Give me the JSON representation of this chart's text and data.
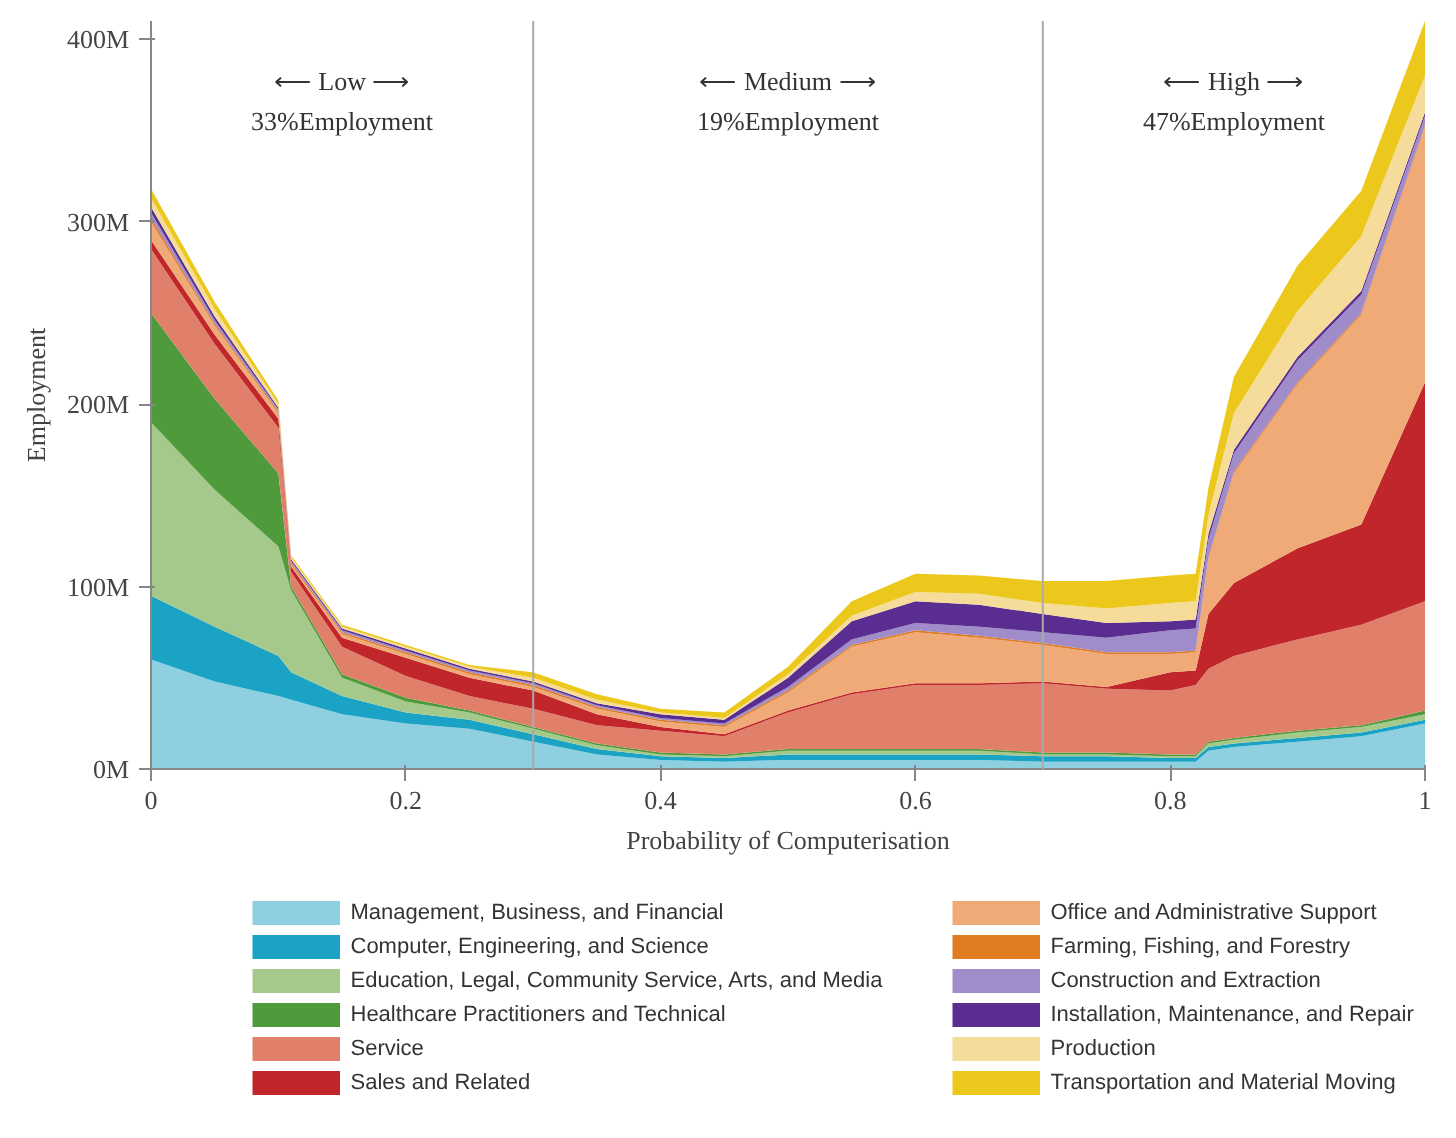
{
  "chart_data": {
    "type": "area",
    "stacked": true,
    "xlabel": "Probability of Computerisation",
    "ylabel": "Employment",
    "x": [
      0,
      0.05,
      0.1,
      0.11,
      0.15,
      0.2,
      0.25,
      0.3,
      0.35,
      0.4,
      0.45,
      0.5,
      0.55,
      0.6,
      0.65,
      0.7,
      0.75,
      0.8,
      0.82,
      0.83,
      0.85,
      0.9,
      0.95,
      1
    ],
    "xlim": [
      0,
      1
    ],
    "ylim": [
      0,
      410
    ],
    "xticks": [
      0,
      0.2,
      0.4,
      0.6,
      0.8,
      1
    ],
    "yticks": [
      {
        "value": 0,
        "label": "0M"
      },
      {
        "value": 100,
        "label": "100M"
      },
      {
        "value": 200,
        "label": "200M"
      },
      {
        "value": 300,
        "label": "300M"
      },
      {
        "value": 400,
        "label": "400M"
      }
    ],
    "grid": false,
    "legend": "bottom",
    "ref_lines": [
      {
        "axis": "x",
        "value": 0.3,
        "color": "#aaaaaa"
      },
      {
        "axis": "x",
        "value": 0.7,
        "color": "#aaaaaa"
      }
    ],
    "annotations": [
      "⟵ Low ⟶",
      "33%Employment",
      "⟵ Medium ⟶",
      "19%Employment",
      "⟵ High ⟶",
      "47%Employment"
    ],
    "series": [
      {
        "name": "Management, Business, and Financial",
        "color": "#8ecfe0",
        "values": [
          60,
          48,
          40,
          38,
          30,
          25,
          22,
          15,
          8,
          5,
          4,
          5,
          5,
          5,
          5,
          4,
          4,
          4,
          4,
          10,
          12,
          15,
          18,
          25
        ]
      },
      {
        "name": "Computer, Engineering, and Science",
        "color": "#1aa3c4",
        "values": [
          35,
          30,
          22,
          15,
          10,
          6,
          5,
          4,
          3,
          2,
          2,
          3,
          3,
          3,
          3,
          3,
          3,
          2,
          2,
          2,
          2,
          2,
          2,
          2
        ]
      },
      {
        "name": "Education, Legal, Community Service, Arts, and Media",
        "color": "#a5c98a",
        "values": [
          95,
          75,
          60,
          45,
          10,
          6,
          4,
          3,
          2,
          1,
          1,
          2,
          2,
          2,
          2,
          1,
          1,
          1,
          1,
          2,
          2,
          3,
          3,
          3
        ]
      },
      {
        "name": "Healthcare Practitioners and Technical",
        "color": "#4f9a3a",
        "values": [
          60,
          50,
          40,
          2,
          2,
          2,
          1,
          1,
          1,
          1,
          1,
          1,
          1,
          1,
          1,
          1,
          1,
          1,
          1,
          1,
          1,
          1,
          1,
          2
        ]
      },
      {
        "name": "Service",
        "color": "#e0806a",
        "values": [
          35,
          30,
          25,
          8,
          15,
          12,
          8,
          10,
          10,
          12,
          10,
          20,
          30,
          35,
          35,
          38,
          35,
          35,
          38,
          40,
          45,
          50,
          55,
          60
        ]
      },
      {
        "name": "Sales and Related",
        "color": "#c0262a",
        "values": [
          5,
          5,
          5,
          3,
          5,
          10,
          10,
          10,
          6,
          2,
          1,
          1,
          1,
          1,
          1,
          1,
          1,
          10,
          8,
          30,
          40,
          50,
          55,
          120
        ]
      },
      {
        "name": "Office and Administrative Support",
        "color": "#f0aa78",
        "values": [
          10,
          5,
          3,
          1,
          2,
          2,
          2,
          2,
          3,
          3,
          4,
          10,
          25,
          28,
          25,
          20,
          18,
          10,
          10,
          30,
          60,
          90,
          115,
          140
        ]
      },
      {
        "name": "Farming, Fishing, and Forestry",
        "color": "#e07b22",
        "values": [
          2,
          1,
          1,
          1,
          1,
          1,
          1,
          1,
          1,
          1,
          1,
          1,
          1,
          1,
          1,
          1,
          1,
          1,
          1,
          1,
          1,
          1,
          1,
          1
        ]
      },
      {
        "name": "Construction and Extraction",
        "color": "#a08cc8",
        "values": [
          3,
          2,
          1,
          1,
          1,
          1,
          1,
          1,
          1,
          1,
          1,
          2,
          3,
          4,
          5,
          6,
          8,
          12,
          12,
          10,
          10,
          12,
          10,
          5
        ]
      },
      {
        "name": "Installation, Maintenance, and Repair",
        "color": "#5a2d91",
        "values": [
          3,
          2,
          1,
          1,
          1,
          1,
          1,
          1,
          1,
          2,
          2,
          5,
          10,
          12,
          12,
          10,
          8,
          5,
          5,
          3,
          2,
          2,
          2,
          2
        ]
      },
      {
        "name": "Production",
        "color": "#f5dc9a",
        "values": [
          5,
          4,
          2,
          1,
          1,
          1,
          1,
          2,
          2,
          1,
          1,
          2,
          3,
          5,
          6,
          6,
          8,
          10,
          10,
          10,
          20,
          25,
          30,
          20
        ]
      },
      {
        "name": "Transportation and Material Moving",
        "color": "#ecc81c",
        "values": [
          5,
          4,
          2,
          1,
          1,
          1,
          1,
          3,
          3,
          2,
          3,
          4,
          8,
          10,
          10,
          12,
          15,
          15,
          15,
          15,
          20,
          25,
          25,
          30
        ]
      }
    ]
  }
}
